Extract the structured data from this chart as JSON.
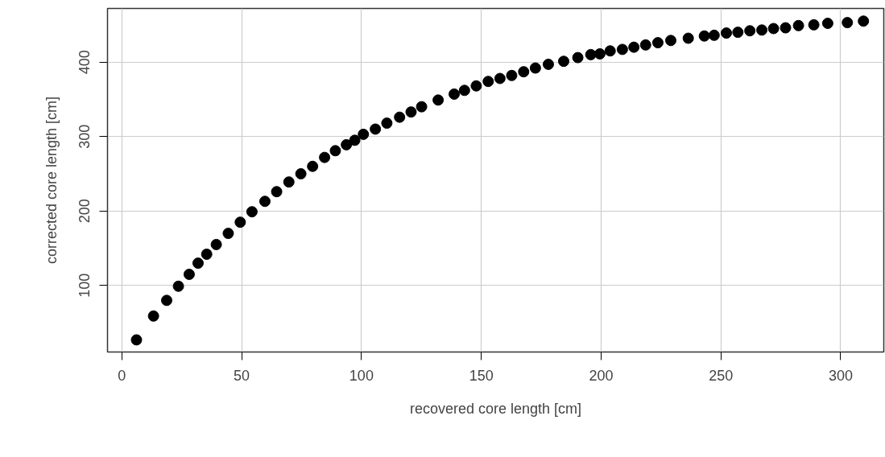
{
  "chart_data": {
    "type": "scatter",
    "xlabel": "recovered core length [cm]",
    "ylabel": "corrected core length [cm]",
    "xlim": [
      -6,
      318
    ],
    "ylim": [
      10.7,
      472
    ],
    "xticks": [
      0,
      50,
      100,
      150,
      200,
      250,
      300
    ],
    "yticks": [
      100,
      200,
      300,
      400
    ],
    "grid": true,
    "marker": "circle",
    "series": [
      {
        "color": "#000000",
        "x": [
          6.1,
          13.2,
          18.7,
          23.6,
          28.1,
          31.8,
          35.4,
          39.4,
          44.4,
          49.4,
          54.3,
          59.7,
          64.6,
          69.7,
          74.7,
          79.6,
          84.6,
          89.1,
          93.7,
          97.2,
          100.8,
          105.8,
          110.6,
          115.9,
          120.7,
          125.1,
          132.0,
          138.7,
          143.0,
          147.9,
          152.9,
          157.8,
          162.7,
          167.7,
          172.6,
          178.0,
          184.4,
          190.3,
          195.7,
          199.5,
          203.8,
          208.9,
          213.7,
          218.6,
          223.7,
          229.1,
          236.4,
          243.1,
          247.2,
          252.3,
          257.1,
          262.1,
          267.1,
          272.0,
          277.0,
          282.4,
          288.8,
          294.6,
          302.8,
          309.5
        ],
        "values": [
          27,
          59,
          80,
          99,
          115,
          130,
          142,
          155,
          170,
          185,
          199,
          213,
          226,
          239,
          250,
          260,
          272,
          281,
          289,
          295,
          303,
          310,
          318,
          326,
          333,
          340,
          349,
          357,
          362,
          368,
          374,
          378,
          382,
          387,
          392,
          397,
          401,
          406,
          410,
          411,
          415,
          417,
          420,
          423,
          426,
          429,
          432,
          435,
          436,
          439,
          440,
          442,
          443,
          445,
          446,
          449,
          450,
          452,
          453,
          455
        ]
      }
    ]
  }
}
